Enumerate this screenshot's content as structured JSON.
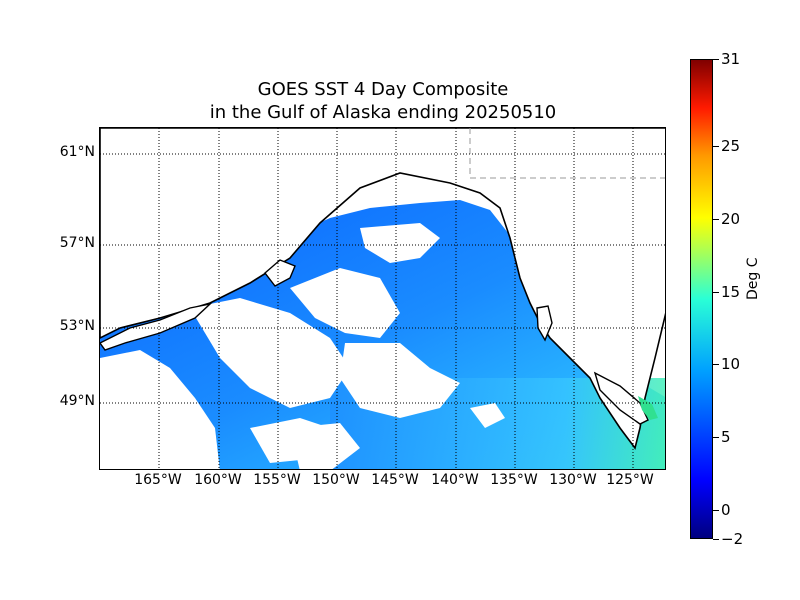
{
  "title_line1": "GOES SST 4 Day Composite",
  "title_line2": "in the Gulf of Alaska ending 20250510",
  "map": {
    "lat_labels": [
      "61°N",
      "57°N",
      "53°N",
      "49°N"
    ],
    "lon_labels": [
      "165°W",
      "160°W",
      "155°W",
      "150°W",
      "145°W",
      "140°W",
      "135°W",
      "130°W",
      "125°W"
    ],
    "graticule_style": "dotted black",
    "land_color": "#ffffff",
    "coastline_color": "#000000",
    "sst_colors": {
      "cold": "#0a64ff",
      "mid": "#1e96ff",
      "warm": "#38c8ff",
      "warmest": "#3cf0b8",
      "coast_inlet": "#30e090"
    }
  },
  "colorbar": {
    "label": "Deg C",
    "min": -2,
    "max": 31,
    "ticks": [
      "31",
      "25",
      "20",
      "15",
      "10",
      "5",
      "0",
      "−2"
    ],
    "tick_values": [
      31,
      25,
      20,
      15,
      10,
      5,
      0,
      -2
    ],
    "colormap": "jet"
  }
}
